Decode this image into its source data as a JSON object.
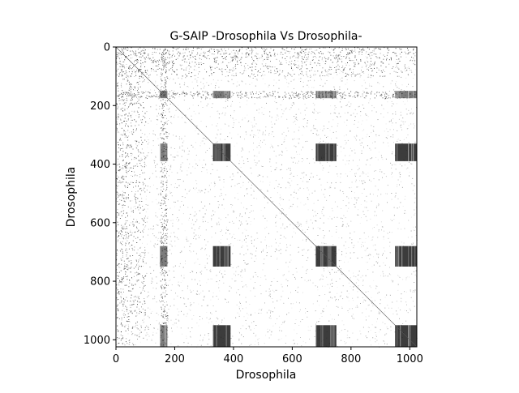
{
  "chart_data": {
    "type": "heatmap",
    "title": "G-SAIP -Drosophila Vs Drosophila-",
    "xlabel": "Drosophila",
    "ylabel": "Drosophila",
    "xlim": [
      0,
      1024
    ],
    "ylim": [
      1024,
      0
    ],
    "x_ticks": [
      0,
      200,
      400,
      600,
      800,
      1000
    ],
    "y_ticks": [
      0,
      200,
      400,
      600,
      800,
      1000
    ],
    "y_axis_inverted": true,
    "grid": false,
    "colormap": "grayscale (black = high density)",
    "diagonal": "thin line from (0,0) to (1024,1024)",
    "dense_ranges": [
      [
        150,
        175
      ],
      [
        330,
        390
      ],
      [
        680,
        750
      ],
      [
        950,
        1024
      ]
    ],
    "sparse_bands": [
      [
        0,
        40
      ],
      [
        40,
        100
      ],
      [
        150,
        175
      ]
    ],
    "background_density": 0.035
  },
  "colors": {
    "dense": "#111111",
    "ink": "#000000",
    "background": "#ffffff"
  }
}
